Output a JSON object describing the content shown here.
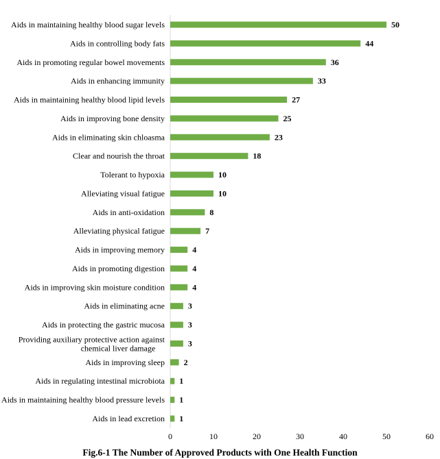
{
  "chart_data": {
    "type": "bar",
    "orientation": "horizontal",
    "title": "Fig.6-1 The Number of Approved Products with One Health Function",
    "xlabel": "",
    "ylabel": "",
    "xlim": [
      0,
      60
    ],
    "xticks": [
      0,
      10,
      20,
      30,
      40,
      50,
      60
    ],
    "grid": false,
    "bar_color": "#70ad47",
    "categories": [
      "Aids in maintaining healthy blood sugar levels",
      "Aids in controlling body fats",
      "Aids in promoting regular bowel movements",
      "Aids in enhancing immunity",
      "Aids in maintaining healthy blood lipid levels",
      "Aids in improving bone density",
      "Aids in eliminating skin chloasma",
      "Clear and nourish the throat",
      "Tolerant to hypoxia",
      "Alleviating visual fatigue",
      "Aids in anti-oxidation",
      "Alleviating physical fatigue",
      "Aids in improving memory",
      "Aids in promoting digestion",
      "Aids in improving skin moisture condition",
      "Aids in eliminating acne",
      "Aids in protecting the gastric mucosa",
      "Providing auxiliary protective action against chemical liver damage",
      "Aids in improving sleep",
      "Aids in regulating intestinal microbiota",
      "Aids in maintaining healthy blood pressure levels",
      "Aids in lead excretion"
    ],
    "values": [
      50,
      44,
      36,
      33,
      27,
      25,
      23,
      18,
      10,
      10,
      8,
      7,
      4,
      4,
      4,
      3,
      3,
      3,
      2,
      1,
      1,
      1
    ]
  }
}
